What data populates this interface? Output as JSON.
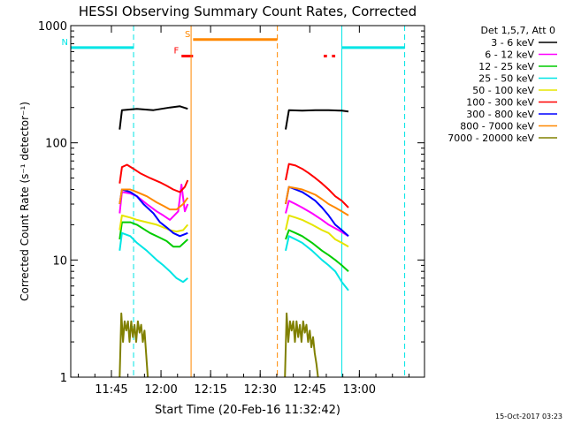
{
  "chart_data": {
    "type": "line",
    "title": "HESSI Observing Summary Count Rates, Corrected",
    "xlabel": "Start Time (20-Feb-16 11:32:42)",
    "ylabel": "Corrected Count Rate (s⁻¹ detector⁻¹)",
    "x_unit": "minutes since 11:32:42",
    "xlim": [
      0,
      107
    ],
    "ylim": [
      1,
      1000
    ],
    "yscale": "log",
    "xticks": [
      {
        "label": "11:45",
        "value": 12.3
      },
      {
        "label": "12:00",
        "value": 27.3
      },
      {
        "label": "12:15",
        "value": 42.3
      },
      {
        "label": "12:30",
        "value": 57.3
      },
      {
        "label": "12:45",
        "value": 72.3
      },
      {
        "label": "13:00",
        "value": 87.3
      }
    ],
    "yticks": [
      {
        "label": "1",
        "value": 1
      },
      {
        "label": "10",
        "value": 10
      },
      {
        "label": "100",
        "value": 100
      },
      {
        "label": "1000",
        "value": 1000
      }
    ],
    "legend_title": "Det 1,5,7, Att 0",
    "legend_position": "outside-right",
    "series": [
      {
        "name": "3 - 6 keV",
        "color": "#000000",
        "segments": [
          {
            "x": [
              14.8,
              15.5,
              20,
              25,
              30,
              33,
              35.4
            ],
            "y": [
              130,
              190,
              195,
              190,
              200,
              205,
              195
            ]
          },
          {
            "x": [
              65,
              66,
              70,
              74,
              78,
              82,
              84
            ],
            "y": [
              130,
              190,
              188,
              190,
              190,
              188,
              185
            ]
          }
        ]
      },
      {
        "name": "6 - 12 keV",
        "color": "#ff00ff",
        "segments": [
          {
            "x": [
              14.8,
              15.5,
              18,
              20,
              23,
              26,
              28,
              30,
              32.5,
              33.5,
              34.5,
              35.4
            ],
            "y": [
              25,
              38,
              37,
              35,
              30,
              26,
              24,
              22,
              26,
              44,
              26,
              30
            ]
          },
          {
            "x": [
              65,
              66,
              68,
              70,
              73,
              76,
              78,
              81,
              84
            ],
            "y": [
              25,
              32,
              30,
              28,
              25,
              22,
              20,
              18,
              16
            ]
          }
        ]
      },
      {
        "name": "12 - 25 keV",
        "color": "#00cc00",
        "segments": [
          {
            "x": [
              14.8,
              15.5,
              18,
              20,
              24,
              27,
              29,
              31,
              33,
              35.4
            ],
            "y": [
              15,
              21,
              21,
              20,
              17,
              15.5,
              14.5,
              13,
              13,
              15
            ]
          },
          {
            "x": [
              65,
              66,
              68,
              70,
              73,
              76,
              78,
              80,
              82,
              84
            ],
            "y": [
              15,
              18,
              17,
              16,
              14,
              12,
              11,
              10,
              9,
              8
            ]
          }
        ]
      },
      {
        "name": "25 - 50 keV",
        "color": "#00e5e5",
        "segments": [
          {
            "x": [
              14.8,
              15.5,
              18,
              20,
              23,
              26,
              28,
              30,
              32,
              34,
              35.4
            ],
            "y": [
              12,
              17,
              16,
              14,
              12,
              10,
              9,
              8,
              7,
              6.5,
              7
            ]
          },
          {
            "x": [
              65,
              66,
              68,
              70,
              73,
              76,
              78,
              80,
              82,
              84
            ],
            "y": [
              12,
              16,
              15,
              14,
              12,
              10,
              9,
              8,
              6.5,
              5.5
            ]
          }
        ]
      },
      {
        "name": "50 - 100 keV",
        "color": "#e5e500",
        "segments": [
          {
            "x": [
              14.8,
              15.5,
              18,
              20,
              23,
              26,
              28,
              30,
              32,
              34,
              35.4
            ],
            "y": [
              18,
              24,
              23,
              22,
              21,
              20,
              19,
              18,
              17.5,
              18,
              20
            ]
          },
          {
            "x": [
              65,
              66,
              68,
              70,
              73,
              76,
              78,
              80,
              82,
              84
            ],
            "y": [
              18,
              24,
              23,
              22,
              20,
              18,
              17,
              15,
              14,
              13
            ]
          }
        ]
      },
      {
        "name": "100 - 300 keV",
        "color": "#ff0000",
        "segments": [
          {
            "x": [
              14.8,
              15.5,
              17,
              19,
              21,
              24,
              27,
              29,
              31,
              33,
              34.5,
              35.4
            ],
            "y": [
              45,
              62,
              65,
              60,
              55,
              50,
              46,
              43,
              40,
              38,
              42,
              48
            ]
          },
          {
            "x": [
              65,
              66,
              68,
              70,
              72,
              74,
              76,
              78,
              80,
              82,
              84
            ],
            "y": [
              48,
              66,
              64,
              60,
              55,
              50,
              45,
              40,
              35,
              32,
              28
            ]
          }
        ]
      },
      {
        "name": "300 - 800 keV",
        "color": "#0000ff",
        "segments": [
          {
            "x": [
              14.8,
              15.5,
              18,
              20,
              22,
              25,
              27,
              29,
              31,
              33,
              35.4
            ],
            "y": [
              30,
              40,
              38,
              35,
              30,
              25,
              21,
              19,
              17,
              16,
              17
            ]
          },
          {
            "x": [
              65,
              66,
              68,
              70,
              72,
              74,
              76,
              78,
              80,
              82,
              84
            ],
            "y": [
              30,
              42,
              40,
              38,
              35,
              32,
              28,
              24,
              20,
              18,
              16
            ]
          }
        ]
      },
      {
        "name": "800 - 7000 keV",
        "color": "#ff8800",
        "segments": [
          {
            "x": [
              14.8,
              15.5,
              18,
              20,
              23,
              26,
              28,
              30,
              32,
              34,
              35.4
            ],
            "y": [
              30,
              40,
              40,
              38,
              35,
              31,
              29,
              27,
              27,
              30,
              34
            ]
          },
          {
            "x": [
              65,
              66,
              68,
              70,
              72,
              74,
              76,
              78,
              80,
              82,
              84
            ],
            "y": [
              30,
              42,
              41,
              40,
              38,
              36,
              33,
              30,
              28,
              26,
              24
            ]
          }
        ]
      },
      {
        "name": "7000 - 20000 keV",
        "color": "#808000",
        "segments": [
          {
            "x": [
              14.8,
              15.3,
              15.8,
              16.3,
              16.8,
              17.3,
              17.8,
              18.3,
              18.8,
              19.3,
              19.8,
              20.3,
              20.8,
              21.3,
              21.8,
              22.3,
              22.8,
              23.3
            ],
            "y": [
              1,
              3.5,
              2,
              3,
              2.5,
              3,
              2,
              3,
              2.2,
              2.8,
              2,
              3,
              2.4,
              2.8,
              2,
              2.5,
              1.6,
              1
            ]
          },
          {
            "x": [
              64.8,
              65.3,
              65.8,
              66.3,
              66.8,
              67.3,
              67.8,
              68.3,
              68.8,
              69.3,
              69.8,
              70.3,
              70.8,
              71.3,
              71.8,
              72.3,
              72.8,
              73.3,
              73.8,
              74.3,
              74.8
            ],
            "y": [
              1,
              3.5,
              2,
              3,
              2.5,
              3,
              2,
              3,
              2.2,
              2.8,
              2,
              3,
              2.4,
              2.8,
              2,
              2.5,
              1.8,
              2.2,
              1.6,
              1.3,
              1
            ]
          }
        ]
      }
    ],
    "event_lines": [
      {
        "x": 0,
        "color": "#00e5e5",
        "style": "solid"
      },
      {
        "x": 19,
        "color": "#00e5e5",
        "style": "dashed"
      },
      {
        "x": 36.4,
        "color": "#ff8800",
        "style": "solid"
      },
      {
        "x": 62.5,
        "color": "#ff8800",
        "style": "dashed"
      },
      {
        "x": 82,
        "color": "#00e5e5",
        "style": "solid"
      },
      {
        "x": 101,
        "color": "#00e5e5",
        "style": "dashed"
      }
    ],
    "flag_bars": [
      {
        "label": "N",
        "color": "#00e5e5",
        "x": [
          0,
          19
        ],
        "y": 650
      },
      {
        "label": "",
        "color": "#00e5e5",
        "x": [
          82,
          101
        ],
        "y": 650
      },
      {
        "label": "S",
        "color": "#ff8800",
        "x": [
          37,
          62.5
        ],
        "y": 760
      },
      {
        "label": "F",
        "color": "#ff0000",
        "x": [
          33.5,
          37
        ],
        "y": 550
      },
      {
        "label": "",
        "color": "#ff0000",
        "x": [
          76.5,
          77.5
        ],
        "y": 550
      },
      {
        "label": "",
        "color": "#ff0000",
        "x": [
          79,
          80
        ],
        "y": 550
      }
    ],
    "footer_timestamp": "15-Oct-2017 03:23"
  }
}
